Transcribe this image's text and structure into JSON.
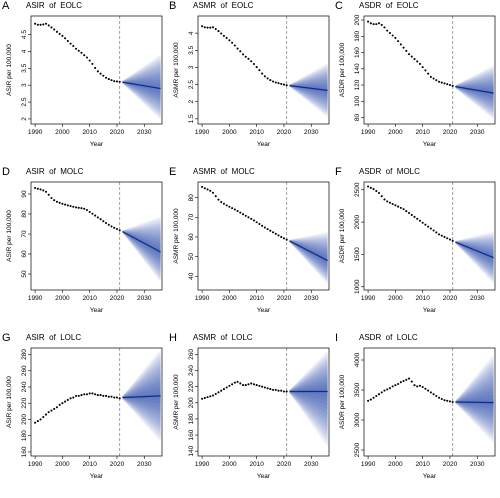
{
  "chart_data": [
    {
      "letter": "A",
      "title": "ASIR  of  EOLC",
      "type": "line",
      "ylabel": "ASIR per 100,000",
      "xlabel": "Year",
      "yticks": [
        2.0,
        2.5,
        3.0,
        3.5,
        4.0,
        4.5
      ],
      "ylim": [
        1.85,
        5.05
      ],
      "xticks": [
        1990,
        2000,
        2010,
        2020,
        2030
      ],
      "xlim": [
        1988.5,
        2036.5
      ],
      "split_year": 2021,
      "observed": {
        "x": [
          1990,
          1991,
          1992,
          1993,
          1994,
          1995,
          1996,
          1997,
          1998,
          1999,
          2000,
          2001,
          2002,
          2003,
          2004,
          2005,
          2006,
          2007,
          2008,
          2009,
          2010,
          2011,
          2012,
          2013,
          2014,
          2015,
          2016,
          2017,
          2018,
          2019,
          2020,
          2021
        ],
        "y": [
          4.82,
          4.79,
          4.79,
          4.8,
          4.82,
          4.77,
          4.71,
          4.65,
          4.58,
          4.52,
          4.46,
          4.39,
          4.31,
          4.23,
          4.16,
          4.08,
          4.02,
          3.96,
          3.89,
          3.82,
          3.73,
          3.63,
          3.51,
          3.41,
          3.34,
          3.28,
          3.22,
          3.18,
          3.15,
          3.12,
          3.11,
          3.1
        ]
      },
      "forecast": {
        "x": [
          2022,
          2036
        ],
        "mean": [
          3.09,
          2.9
        ],
        "lower": [
          3.05,
          1.98
        ],
        "upper": [
          3.13,
          3.9
        ]
      }
    },
    {
      "letter": "B",
      "title": "ASMR  of  EOLC",
      "type": "line",
      "ylabel": "ASMR per 100,000",
      "xlabel": "Year",
      "yticks": [
        1.5,
        2.0,
        2.5,
        3.0,
        3.5,
        4.0
      ],
      "ylim": [
        1.35,
        4.5
      ],
      "xticks": [
        1990,
        2000,
        2010,
        2020,
        2030
      ],
      "xlim": [
        1988.5,
        2036.5
      ],
      "split_year": 2021,
      "observed": {
        "x": [
          1990,
          1991,
          1992,
          1993,
          1994,
          1995,
          1996,
          1997,
          1998,
          1999,
          2000,
          2001,
          2002,
          2003,
          2004,
          2005,
          2006,
          2007,
          2008,
          2009,
          2010,
          2011,
          2012,
          2013,
          2014,
          2015,
          2016,
          2017,
          2018,
          2019,
          2020,
          2021
        ],
        "y": [
          4.2,
          4.17,
          4.16,
          4.16,
          4.17,
          4.12,
          4.06,
          3.99,
          3.92,
          3.86,
          3.79,
          3.72,
          3.64,
          3.55,
          3.47,
          3.38,
          3.31,
          3.25,
          3.18,
          3.1,
          3.01,
          2.92,
          2.82,
          2.74,
          2.68,
          2.63,
          2.59,
          2.56,
          2.54,
          2.52,
          2.5,
          2.48
        ]
      },
      "forecast": {
        "x": [
          2022,
          2036
        ],
        "mean": [
          2.47,
          2.33
        ],
        "lower": [
          2.44,
          1.55
        ],
        "upper": [
          2.5,
          3.12
        ]
      }
    },
    {
      "letter": "C",
      "title": "ASDR  of  EOLC",
      "type": "line",
      "ylabel": "ASDR per 100,000",
      "xlabel": "Year",
      "yticks": [
        80,
        100,
        120,
        140,
        160,
        180,
        200
      ],
      "ylim": [
        72,
        205
      ],
      "xticks": [
        1990,
        2000,
        2010,
        2020,
        2030
      ],
      "xlim": [
        1988.5,
        2036.5
      ],
      "split_year": 2021,
      "observed": {
        "x": [
          1990,
          1991,
          1992,
          1993,
          1994,
          1995,
          1996,
          1997,
          1998,
          1999,
          2000,
          2001,
          2002,
          2003,
          2004,
          2005,
          2006,
          2007,
          2008,
          2009,
          2010,
          2011,
          2012,
          2013,
          2014,
          2015,
          2016,
          2017,
          2018,
          2019,
          2020,
          2021
        ],
        "y": [
          198,
          196,
          195,
          195,
          196,
          194,
          191,
          187,
          184,
          181,
          178,
          174,
          170,
          166,
          162,
          158,
          155,
          152,
          149,
          146,
          142,
          138,
          134,
          130,
          128,
          126,
          124,
          123,
          122,
          121,
          120,
          119
        ]
      },
      "forecast": {
        "x": [
          2022,
          2036
        ],
        "mean": [
          118,
          110
        ],
        "lower": [
          116,
          78
        ],
        "upper": [
          120,
          144
        ]
      }
    },
    {
      "letter": "D",
      "title": "ASIR  of  MOLC",
      "type": "line",
      "ylabel": "ASIR per 100,000",
      "xlabel": "Year",
      "yticks": [
        50,
        60,
        70,
        80,
        90
      ],
      "ylim": [
        42,
        96
      ],
      "xticks": [
        1990,
        2000,
        2010,
        2020,
        2030
      ],
      "xlim": [
        1988.5,
        2036.5
      ],
      "split_year": 2021,
      "observed": {
        "x": [
          1990,
          1991,
          1992,
          1993,
          1994,
          1995,
          1996,
          1997,
          1998,
          1999,
          2000,
          2001,
          2002,
          2003,
          2004,
          2005,
          2006,
          2007,
          2008,
          2009,
          2010,
          2011,
          2012,
          2013,
          2014,
          2015,
          2016,
          2017,
          2018,
          2019,
          2020,
          2021
        ],
        "y": [
          93.0,
          92.6,
          92.3,
          91.8,
          91.1,
          89.6,
          88.0,
          86.9,
          86.1,
          85.6,
          85.1,
          84.7,
          84.3,
          84.0,
          83.6,
          83.3,
          83.1,
          82.9,
          82.6,
          82.0,
          81.0,
          80.1,
          79.2,
          78.3,
          77.4,
          76.4,
          75.5,
          74.6,
          73.8,
          73.1,
          72.5,
          71.8
        ]
      },
      "forecast": {
        "x": [
          2022,
          2036
        ],
        "mean": [
          71.2,
          61.0
        ],
        "lower": [
          70.6,
          46.0
        ],
        "upper": [
          71.8,
          78.5
        ]
      }
    },
    {
      "letter": "E",
      "title": "ASMR  of  MOLC",
      "type": "line",
      "ylabel": "ASMR per 100,000",
      "xlabel": "Year",
      "yticks": [
        40,
        50,
        60,
        70,
        80
      ],
      "ylim": [
        33,
        88
      ],
      "xticks": [
        1990,
        2000,
        2010,
        2020,
        2030
      ],
      "xlim": [
        1988.5,
        2036.5
      ],
      "split_year": 2021,
      "observed": {
        "x": [
          1990,
          1991,
          1992,
          1993,
          1994,
          1995,
          1996,
          1997,
          1998,
          1999,
          2000,
          2001,
          2002,
          2003,
          2004,
          2005,
          2006,
          2007,
          2008,
          2009,
          2010,
          2011,
          2012,
          2013,
          2014,
          2015,
          2016,
          2017,
          2018,
          2019,
          2020,
          2021
        ],
        "y": [
          85.5,
          84.8,
          84.2,
          83.5,
          82.5,
          80.8,
          79.0,
          77.8,
          76.9,
          76.1,
          75.4,
          74.7,
          74.0,
          73.2,
          72.4,
          71.6,
          70.8,
          70.0,
          69.2,
          68.4,
          67.5,
          66.6,
          65.7,
          64.8,
          64.0,
          63.2,
          62.4,
          61.6,
          60.8,
          60.0,
          59.3,
          58.6
        ]
      },
      "forecast": {
        "x": [
          2022,
          2036
        ],
        "mean": [
          58.0,
          48.0
        ],
        "lower": [
          57.4,
          36.0
        ],
        "upper": [
          58.6,
          62.5
        ]
      }
    },
    {
      "letter": "F",
      "title": "ASDR  of  MOLC",
      "type": "line",
      "ylabel": "ASDR per 100,000",
      "xlabel": "Year",
      "yticks": [
        1000,
        1500,
        2000,
        2500
      ],
      "ylim": [
        950,
        2620
      ],
      "xticks": [
        1990,
        2000,
        2010,
        2020,
        2030
      ],
      "xlim": [
        1988.5,
        2036.5
      ],
      "split_year": 2021,
      "observed": {
        "x": [
          1990,
          1991,
          1992,
          1993,
          1994,
          1995,
          1996,
          1997,
          1998,
          1999,
          2000,
          2001,
          2002,
          2003,
          2004,
          2005,
          2006,
          2007,
          2008,
          2009,
          2010,
          2011,
          2012,
          2013,
          2014,
          2015,
          2016,
          2017,
          2018,
          2019,
          2020,
          2021
        ],
        "y": [
          2550,
          2530,
          2510,
          2480,
          2450,
          2400,
          2350,
          2320,
          2300,
          2280,
          2260,
          2240,
          2220,
          2200,
          2170,
          2140,
          2110,
          2080,
          2050,
          2020,
          1990,
          1960,
          1930,
          1900,
          1870,
          1840,
          1810,
          1790,
          1770,
          1750,
          1730,
          1710
        ]
      },
      "forecast": {
        "x": [
          2022,
          2036
        ],
        "mean": [
          1690,
          1450
        ],
        "lower": [
          1670,
          1050
        ],
        "upper": [
          1710,
          1850
        ]
      }
    },
    {
      "letter": "G",
      "title": "ASIR  of  LOLC",
      "type": "line",
      "ylabel": "ASIR per 100,000",
      "xlabel": "Year",
      "yticks": [
        160,
        180,
        200,
        220,
        240,
        260,
        280
      ],
      "ylim": [
        155,
        288
      ],
      "xticks": [
        1990,
        2000,
        2010,
        2020,
        2030
      ],
      "xlim": [
        1988.5,
        2036.5
      ],
      "split_year": 2021,
      "observed": {
        "x": [
          1990,
          1991,
          1992,
          1993,
          1994,
          1995,
          1996,
          1997,
          1998,
          1999,
          2000,
          2001,
          2002,
          2003,
          2004,
          2005,
          2006,
          2007,
          2008,
          2009,
          2010,
          2011,
          2012,
          2013,
          2014,
          2015,
          2016,
          2017,
          2018,
          2019,
          2020,
          2021
        ],
        "y": [
          196,
          198,
          200,
          203,
          206,
          209,
          211,
          213,
          215,
          218,
          220,
          222,
          224,
          226,
          227,
          229,
          229,
          230,
          231,
          231,
          232,
          232,
          231,
          230,
          230,
          229,
          229,
          228,
          228,
          227,
          227,
          226
        ]
      },
      "forecast": {
        "x": [
          2022,
          2036
        ],
        "mean": [
          227,
          229
        ],
        "lower": [
          225,
          173
        ],
        "upper": [
          229,
          286
        ]
      }
    },
    {
      "letter": "H",
      "title": "ASMR  of  LOLC",
      "type": "line",
      "ylabel": "ASMR per 100,000",
      "xlabel": "Year",
      "yticks": [
        140,
        160,
        180,
        200,
        220,
        240,
        260
      ],
      "ylim": [
        134,
        268
      ],
      "xticks": [
        1990,
        2000,
        2010,
        2020,
        2030
      ],
      "xlim": [
        1988.5,
        2036.5
      ],
      "split_year": 2021,
      "observed": {
        "x": [
          1990,
          1991,
          1992,
          1993,
          1994,
          1995,
          1996,
          1997,
          1998,
          1999,
          2000,
          2001,
          2002,
          2003,
          2004,
          2005,
          2006,
          2007,
          2008,
          2009,
          2010,
          2011,
          2012,
          2013,
          2014,
          2015,
          2016,
          2017,
          2018,
          2019,
          2020,
          2021
        ],
        "y": [
          205,
          206,
          207,
          208,
          209,
          211,
          213,
          215,
          217,
          219,
          221,
          223,
          225,
          226,
          224,
          222,
          222,
          223,
          224,
          223,
          222,
          221,
          220,
          219,
          218,
          217,
          216,
          216,
          215,
          215,
          214,
          214
        ]
      },
      "forecast": {
        "x": [
          2022,
          2036
        ],
        "mean": [
          214,
          214
        ],
        "lower": [
          212,
          146
        ],
        "upper": [
          216,
          264
        ]
      }
    },
    {
      "letter": "I",
      "title": "ASDR  of  LOLC",
      "type": "line",
      "ylabel": "ASDR per 100,000",
      "xlabel": "Year",
      "yticks": [
        2500,
        3000,
        3500,
        4000
      ],
      "ylim": [
        2400,
        4200
      ],
      "xticks": [
        1990,
        2000,
        2010,
        2020,
        2030
      ],
      "xlim": [
        1988.5,
        2036.5
      ],
      "split_year": 2021,
      "observed": {
        "x": [
          1990,
          1991,
          1992,
          1993,
          1994,
          1995,
          1996,
          1997,
          1998,
          1999,
          2000,
          2001,
          2002,
          2003,
          2004,
          2005,
          2006,
          2007,
          2008,
          2009,
          2010,
          2011,
          2012,
          2013,
          2014,
          2015,
          2016,
          2017,
          2018,
          2019,
          2020,
          2021
        ],
        "y": [
          3320,
          3340,
          3370,
          3400,
          3430,
          3460,
          3490,
          3510,
          3530,
          3560,
          3580,
          3600,
          3630,
          3650,
          3670,
          3690,
          3640,
          3580,
          3560,
          3570,
          3550,
          3520,
          3490,
          3460,
          3430,
          3400,
          3370,
          3350,
          3330,
          3320,
          3310,
          3300
        ]
      },
      "forecast": {
        "x": [
          2022,
          2036
        ],
        "mean": [
          3300,
          3290
        ],
        "lower": [
          3280,
          2620
        ],
        "upper": [
          3320,
          4090
        ]
      }
    }
  ],
  "colors": {
    "dots": "#000000",
    "band_fill": "#1a3fa8",
    "mean_line": "#0d2a8a",
    "split_line": "#888888"
  }
}
